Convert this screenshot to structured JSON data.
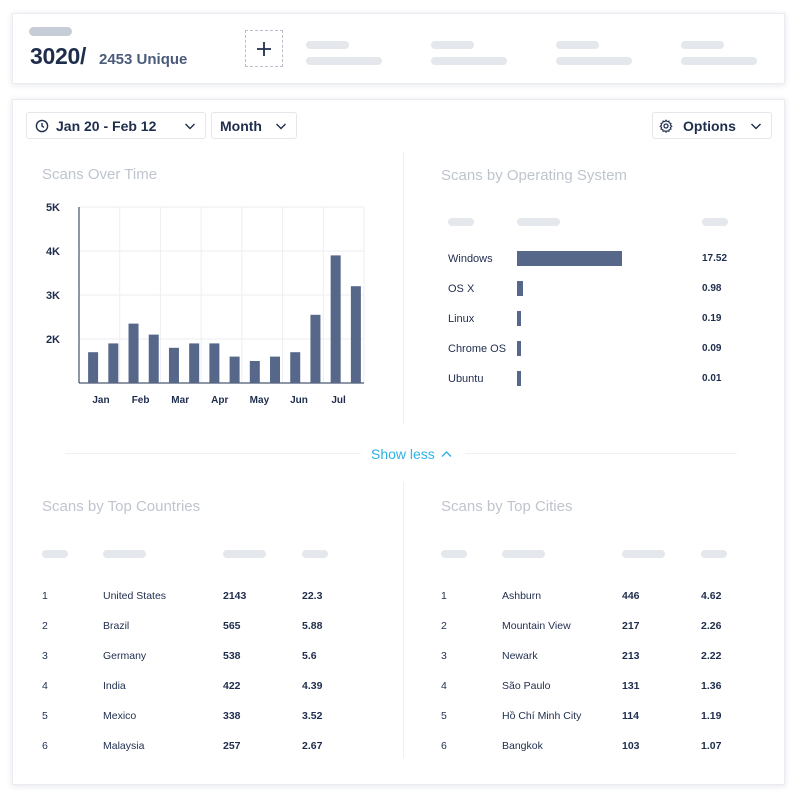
{
  "summary": {
    "total": "3020/",
    "unique": "2453 Unique"
  },
  "controls": {
    "date_range": "Jan 20 - Feb 12",
    "period": "Month",
    "options": "Options"
  },
  "sections": {
    "time": "Scans Over Time",
    "os": "Scans by Operating System",
    "countries": "Scans by Top Countries",
    "cities": "Scans by Top Cities"
  },
  "show_less": "Show less",
  "chart_data": {
    "type": "bar",
    "title": "Scans Over Time",
    "ytick_labels": [
      "5K",
      "4K",
      "3K",
      "2K"
    ],
    "ytick_values": [
      5000,
      4000,
      3000,
      2000
    ],
    "ylim": [
      1000,
      5000
    ],
    "xtick_labels": [
      "Jan",
      "Feb",
      "Mar",
      "Apr",
      "May",
      "Jun",
      "Jul"
    ],
    "values": [
      1700,
      1900,
      2350,
      2100,
      1800,
      1900,
      1900,
      1600,
      1500,
      1600,
      1700,
      2550,
      3900,
      3200
    ],
    "grid": true
  },
  "os": [
    {
      "name": "Windows",
      "value": "17.52",
      "share": 17.52
    },
    {
      "name": "OS X",
      "value": "0.98",
      "share": 0.98
    },
    {
      "name": "Linux",
      "value": "0.19",
      "share": 0.19
    },
    {
      "name": "Chrome OS",
      "value": "0.09",
      "share": 0.09
    },
    {
      "name": "Ubuntu",
      "value": "0.01",
      "share": 0.01
    }
  ],
  "countries": [
    {
      "rank": "1",
      "name": "United States",
      "count": "2143",
      "pct": "22.3"
    },
    {
      "rank": "2",
      "name": "Brazil",
      "count": "565",
      "pct": "5.88"
    },
    {
      "rank": "3",
      "name": "Germany",
      "count": "538",
      "pct": "5.6"
    },
    {
      "rank": "4",
      "name": "India",
      "count": "422",
      "pct": "4.39"
    },
    {
      "rank": "5",
      "name": "Mexico",
      "count": "338",
      "pct": "3.52"
    },
    {
      "rank": "6",
      "name": "Malaysia",
      "count": "257",
      "pct": "2.67"
    }
  ],
  "cities": [
    {
      "rank": "1",
      "name": "Ashburn",
      "count": "446",
      "pct": "4.62"
    },
    {
      "rank": "2",
      "name": "Mountain View",
      "count": "217",
      "pct": "2.26"
    },
    {
      "rank": "3",
      "name": "Newark",
      "count": "213",
      "pct": "2.22"
    },
    {
      "rank": "4",
      "name": "São Paulo",
      "count": "131",
      "pct": "1.36"
    },
    {
      "rank": "5",
      "name": "Hồ Chí Minh City",
      "count": "114",
      "pct": "1.19"
    },
    {
      "rank": "6",
      "name": "Bangkok",
      "count": "103",
      "pct": "1.07"
    }
  ],
  "colors": {
    "bar": "#566789",
    "accent": "#2eb2e6",
    "text": "#1f2d4d",
    "muted": "#bfc5ce"
  },
  "icons": {
    "add": "plus-icon",
    "date": "clock-icon",
    "options": "gear-icon",
    "dropdown": "chevron-down-icon",
    "collapse": "chevron-up-icon"
  }
}
